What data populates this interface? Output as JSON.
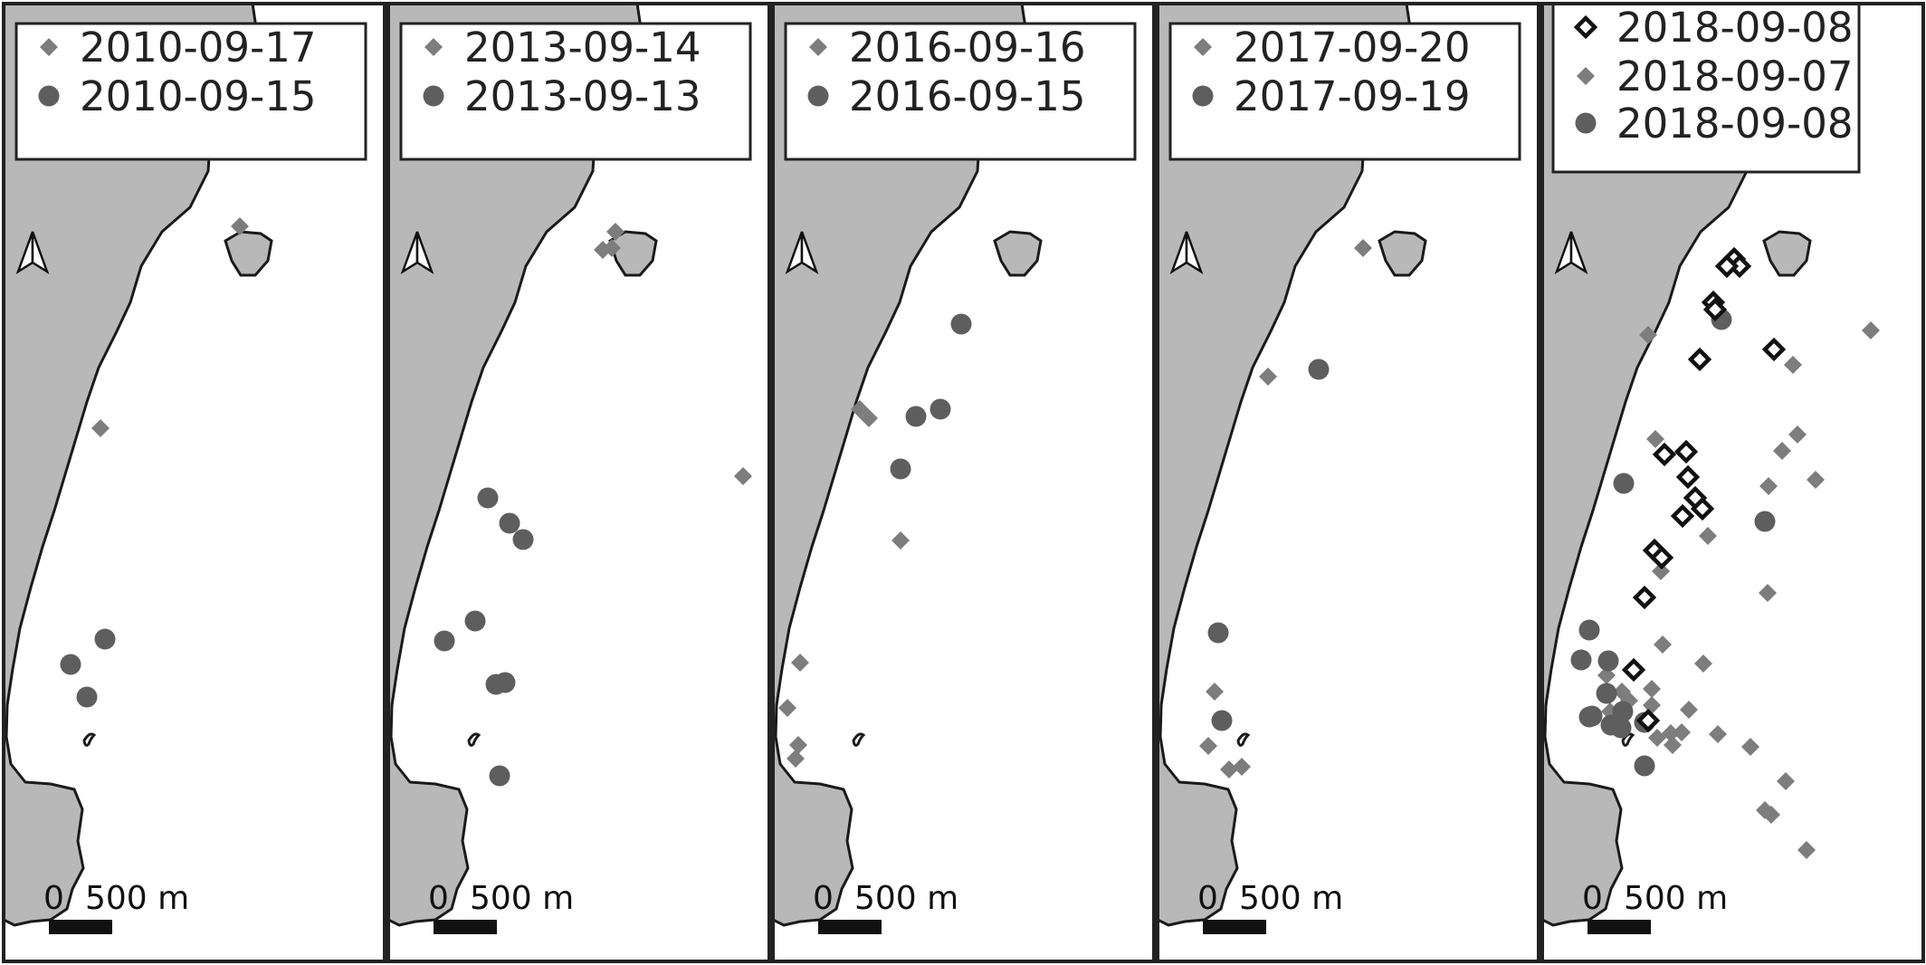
{
  "colors": {
    "land": "#b8b8b8",
    "coast": "#1a1a1a",
    "water": "#ffffff",
    "frame": "#222222",
    "diamond_gray": "#7d7d7d",
    "circle_gray": "#5e5e5e",
    "diamond_black": "#111111"
  },
  "panels": [
    {
      "legend": [
        {
          "symbol": "diamond",
          "label": "2010-09-17"
        },
        {
          "symbol": "circle",
          "label": "2010-09-15"
        }
      ],
      "scale": {
        "zero": "0",
        "distance": "500 m"
      },
      "north_arrow": "north-arrow-icon",
      "observations": [
        {
          "symbol": "diamond",
          "count": 2
        },
        {
          "symbol": "circle",
          "count": 3
        }
      ]
    },
    {
      "legend": [
        {
          "symbol": "diamond",
          "label": "2013-09-14"
        },
        {
          "symbol": "circle",
          "label": "2013-09-13"
        }
      ],
      "scale": {
        "zero": "0",
        "distance": "500 m"
      },
      "north_arrow": "north-arrow-icon",
      "observations": [
        {
          "symbol": "diamond",
          "count": 4
        },
        {
          "symbol": "circle",
          "count": 8
        }
      ]
    },
    {
      "legend": [
        {
          "symbol": "diamond",
          "label": "2016-09-16"
        },
        {
          "symbol": "circle",
          "label": "2016-09-15"
        }
      ],
      "scale": {
        "zero": "0",
        "distance": "500 m"
      },
      "north_arrow": "north-arrow-icon",
      "observations": [
        {
          "symbol": "diamond",
          "count": 7
        },
        {
          "symbol": "circle",
          "count": 4
        }
      ]
    },
    {
      "legend": [
        {
          "symbol": "diamond",
          "label": "2017-09-20"
        },
        {
          "symbol": "circle",
          "label": "2017-09-19"
        }
      ],
      "scale": {
        "zero": "0",
        "distance": "500 m"
      },
      "north_arrow": "north-arrow-icon",
      "observations": [
        {
          "symbol": "diamond",
          "count": 6
        },
        {
          "symbol": "circle",
          "count": 3
        }
      ]
    },
    {
      "legend": [
        {
          "symbol": "diamond-outline",
          "label": "2018-09-08"
        },
        {
          "symbol": "diamond",
          "label": "2018-09-07"
        },
        {
          "symbol": "circle",
          "label": "2018-09-08"
        }
      ],
      "scale": {
        "zero": "0",
        "distance": "500 m"
      },
      "north_arrow": "north-arrow-icon",
      "observations": [
        {
          "symbol": "diamond-outline",
          "count": 18
        },
        {
          "symbol": "diamond",
          "count": 27
        },
        {
          "symbol": "circle",
          "count": 14
        }
      ]
    }
  ]
}
